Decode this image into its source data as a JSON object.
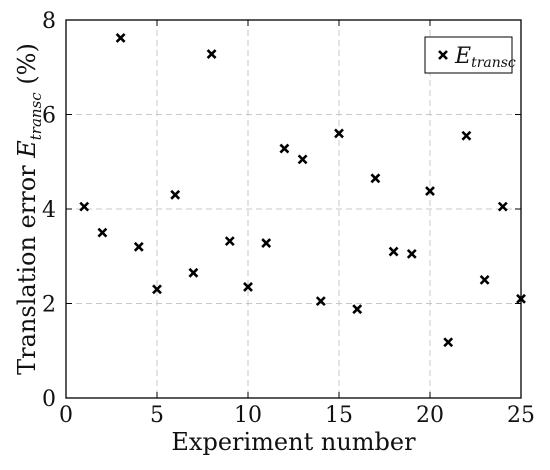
{
  "chart_data": {
    "type": "scatter",
    "title": "",
    "xlabel": "Experiment number",
    "ylabel": {
      "prefix": "Translation error ",
      "var": "E",
      "sub": "transc",
      "suffix": " (%)"
    },
    "xlim": [
      0,
      25
    ],
    "ylim": [
      0,
      8
    ],
    "xticks": [
      0,
      5,
      10,
      15,
      20,
      25
    ],
    "yticks": [
      0,
      2,
      4,
      6,
      8
    ],
    "grid": true,
    "legend_position": "top-right",
    "series": [
      {
        "name": "E_transc",
        "legend_label": {
          "var": "E",
          "sub": "transc"
        },
        "marker": "x",
        "color": "#000000",
        "x": [
          1,
          2,
          3,
          4,
          5,
          6,
          7,
          8,
          9,
          10,
          11,
          12,
          13,
          14,
          15,
          16,
          17,
          18,
          19,
          20,
          21,
          22,
          23,
          24,
          25
        ],
        "y": [
          4.05,
          3.5,
          7.62,
          3.2,
          2.3,
          4.3,
          2.65,
          7.28,
          3.32,
          2.35,
          3.28,
          5.28,
          5.05,
          2.05,
          5.6,
          1.88,
          4.65,
          3.1,
          3.05,
          4.38,
          1.18,
          5.55,
          2.5,
          4.05,
          2.1
        ]
      }
    ]
  }
}
